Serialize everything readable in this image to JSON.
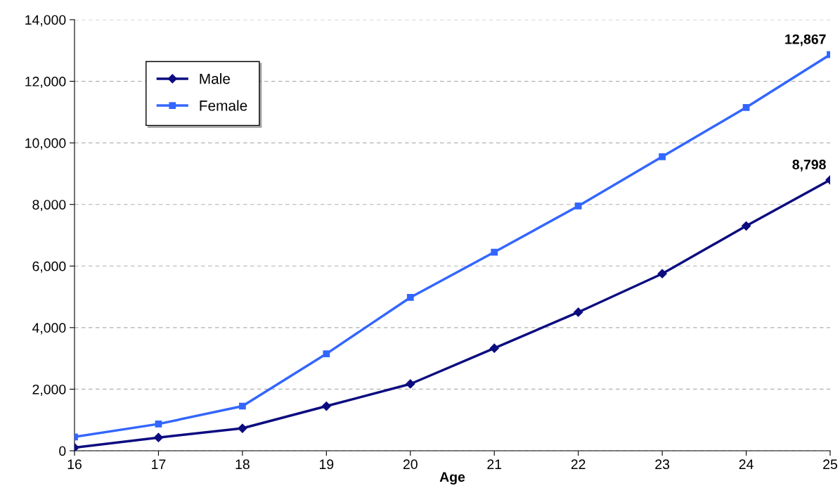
{
  "chart_data": {
    "type": "line",
    "xlabel": "Age",
    "x": [
      16,
      17,
      18,
      19,
      20,
      21,
      22,
      23,
      24,
      25
    ],
    "xlim": [
      16,
      25
    ],
    "xticks": [
      16,
      17,
      18,
      19,
      20,
      21,
      22,
      23,
      24,
      25
    ],
    "ylim": [
      0,
      14000
    ],
    "yticks": [
      {
        "value": 0,
        "label": "0"
      },
      {
        "value": 2000,
        "label": "2,000"
      },
      {
        "value": 4000,
        "label": "4,000"
      },
      {
        "value": 6000,
        "label": "6,000"
      },
      {
        "value": 8000,
        "label": "8,000"
      },
      {
        "value": 10000,
        "label": "10,000"
      },
      {
        "value": 12000,
        "label": "12,000"
      },
      {
        "value": 14000,
        "label": "14,000"
      }
    ],
    "grid": "y",
    "legend": "top left",
    "series": [
      {
        "name": "Male",
        "color": "#0c0c80",
        "marker": "diamond",
        "values": [
          100,
          430,
          730,
          1450,
          2170,
          3330,
          4500,
          5750,
          7300,
          8798
        ],
        "value_labels": [
          null,
          null,
          null,
          null,
          null,
          null,
          null,
          null,
          null,
          "8,798"
        ]
      },
      {
        "name": "Female",
        "color": "#3366ff",
        "marker": "square",
        "values": [
          450,
          870,
          1450,
          3150,
          4980,
          6450,
          7950,
          9550,
          11150,
          12867
        ],
        "value_labels": [
          null,
          null,
          null,
          null,
          null,
          null,
          null,
          null,
          null,
          "12,867"
        ]
      }
    ]
  }
}
